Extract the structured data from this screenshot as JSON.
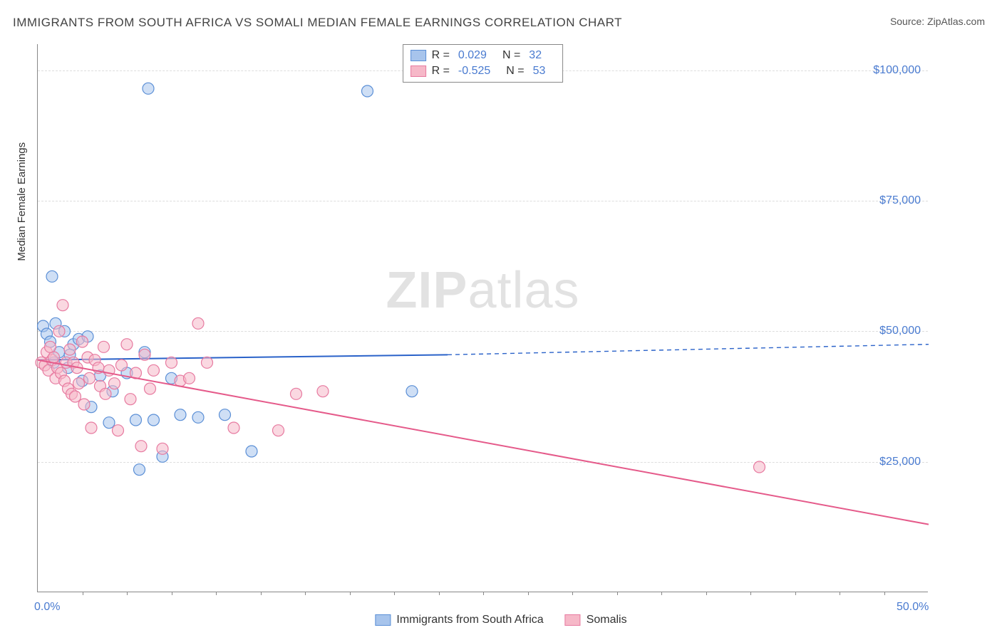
{
  "title": "IMMIGRANTS FROM SOUTH AFRICA VS SOMALI MEDIAN FEMALE EARNINGS CORRELATION CHART",
  "source": "Source: ZipAtlas.com",
  "watermark_bold": "ZIP",
  "watermark_rest": "atlas",
  "y_axis_label": "Median Female Earnings",
  "chart": {
    "type": "scatter",
    "xlim": [
      0,
      50
    ],
    "ylim": [
      0,
      105000
    ],
    "x_ticks": [
      {
        "v": 0,
        "label": "0.0%"
      },
      {
        "v": 50,
        "label": "50.0%"
      }
    ],
    "y_ticks": [
      {
        "v": 25000,
        "label": "$25,000"
      },
      {
        "v": 50000,
        "label": "$50,000"
      },
      {
        "v": 75000,
        "label": "$75,000"
      },
      {
        "v": 100000,
        "label": "$100,000"
      }
    ],
    "x_minor_ticks": [
      2.5,
      5,
      7.5,
      10,
      12.5,
      15,
      17.5,
      20,
      22.5,
      25,
      27.5,
      30,
      32.5,
      35,
      37.5,
      40,
      42.5,
      45,
      47.5
    ],
    "background_color": "#ffffff",
    "grid_color": "#dddddd",
    "marker_radius": 8,
    "marker_opacity": 0.55,
    "line_width": 2,
    "series": [
      {
        "name": "Immigrants from South Africa",
        "color_fill": "#a7c4ec",
        "color_stroke": "#5b8fd6",
        "line_color": "#2a62c9",
        "R": "0.029",
        "N": "32",
        "trend": {
          "x1": 0,
          "y1": 44500,
          "x2": 23,
          "y2": 45500,
          "x2_ext": 50,
          "y2_ext": 47500
        },
        "points": [
          [
            0.3,
            51000
          ],
          [
            0.5,
            49500
          ],
          [
            0.7,
            48000
          ],
          [
            0.8,
            60500
          ],
          [
            0.9,
            44000
          ],
          [
            1.0,
            51500
          ],
          [
            1.2,
            46000
          ],
          [
            1.5,
            50000
          ],
          [
            1.7,
            43000
          ],
          [
            1.8,
            45500
          ],
          [
            2.0,
            47500
          ],
          [
            2.3,
            48500
          ],
          [
            2.5,
            40500
          ],
          [
            2.8,
            49000
          ],
          [
            3.0,
            35500
          ],
          [
            3.5,
            41500
          ],
          [
            4.0,
            32500
          ],
          [
            4.2,
            38500
          ],
          [
            5.0,
            42000
          ],
          [
            5.5,
            33000
          ],
          [
            5.7,
            23500
          ],
          [
            6.0,
            46000
          ],
          [
            6.2,
            96500
          ],
          [
            6.5,
            33000
          ],
          [
            7.0,
            26000
          ],
          [
            7.5,
            41000
          ],
          [
            8.0,
            34000
          ],
          [
            9.0,
            33500
          ],
          [
            10.5,
            34000
          ],
          [
            12.0,
            27000
          ],
          [
            18.5,
            96000
          ],
          [
            21.0,
            38500
          ]
        ]
      },
      {
        "name": "Somalis",
        "color_fill": "#f6b8c8",
        "color_stroke": "#e77aa0",
        "line_color": "#e55a8a",
        "R": "-0.525",
        "N": "53",
        "trend": {
          "x1": 0,
          "y1": 44500,
          "x2": 50,
          "y2": 13000
        },
        "points": [
          [
            0.2,
            44000
          ],
          [
            0.4,
            43500
          ],
          [
            0.5,
            46000
          ],
          [
            0.6,
            42500
          ],
          [
            0.7,
            47000
          ],
          [
            0.8,
            44500
          ],
          [
            0.9,
            45000
          ],
          [
            1.0,
            41000
          ],
          [
            1.1,
            43000
          ],
          [
            1.2,
            50000
          ],
          [
            1.3,
            42000
          ],
          [
            1.4,
            55000
          ],
          [
            1.5,
            40500
          ],
          [
            1.6,
            44000
          ],
          [
            1.7,
            39000
          ],
          [
            1.8,
            46500
          ],
          [
            1.9,
            38000
          ],
          [
            2.0,
            44000
          ],
          [
            2.1,
            37500
          ],
          [
            2.2,
            43000
          ],
          [
            2.3,
            40000
          ],
          [
            2.5,
            48000
          ],
          [
            2.6,
            36000
          ],
          [
            2.8,
            45000
          ],
          [
            2.9,
            41000
          ],
          [
            3.0,
            31500
          ],
          [
            3.2,
            44500
          ],
          [
            3.4,
            43000
          ],
          [
            3.5,
            39500
          ],
          [
            3.7,
            47000
          ],
          [
            3.8,
            38000
          ],
          [
            4.0,
            42500
          ],
          [
            4.3,
            40000
          ],
          [
            4.5,
            31000
          ],
          [
            4.7,
            43500
          ],
          [
            5.0,
            47500
          ],
          [
            5.2,
            37000
          ],
          [
            5.5,
            42000
          ],
          [
            5.8,
            28000
          ],
          [
            6.0,
            45500
          ],
          [
            6.3,
            39000
          ],
          [
            6.5,
            42500
          ],
          [
            7.0,
            27500
          ],
          [
            7.5,
            44000
          ],
          [
            8.0,
            40500
          ],
          [
            8.5,
            41000
          ],
          [
            9.0,
            51500
          ],
          [
            9.5,
            44000
          ],
          [
            11.0,
            31500
          ],
          [
            13.5,
            31000
          ],
          [
            14.5,
            38000
          ],
          [
            16.0,
            38500
          ],
          [
            40.5,
            24000
          ]
        ]
      }
    ]
  },
  "legend_top_labels": {
    "R": "R =",
    "N": "N ="
  },
  "legend_bottom": [
    {
      "label": "Immigrants from South Africa",
      "fill": "#a7c4ec",
      "stroke": "#5b8fd6"
    },
    {
      "label": "Somalis",
      "fill": "#f6b8c8",
      "stroke": "#e77aa0"
    }
  ]
}
